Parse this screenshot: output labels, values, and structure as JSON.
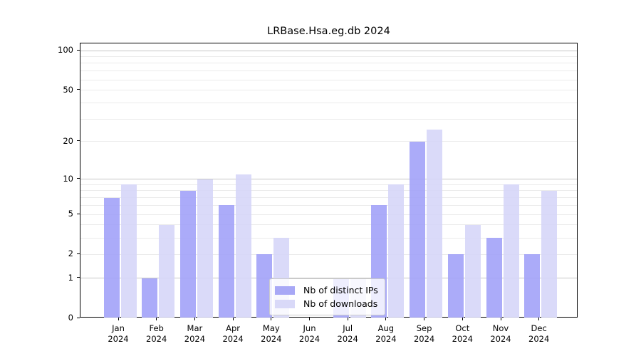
{
  "title": "LRBase.Hsa.eg.db 2024",
  "chart_data": {
    "type": "bar",
    "title": "LRBase.Hsa.eg.db 2024",
    "categories": [
      "Jan",
      "Feb",
      "Mar",
      "Apr",
      "May",
      "Jun",
      "Jul",
      "Aug",
      "Sep",
      "Oct",
      "Nov",
      "Dec"
    ],
    "year_label": "2024",
    "series": [
      {
        "name": "Nb of distinct IPs",
        "color": "#a2a2f8",
        "values": [
          7,
          1,
          8,
          6,
          2,
          0,
          1,
          6,
          20,
          2,
          3,
          2
        ]
      },
      {
        "name": "Nb of downloads",
        "color": "#d6d6f8",
        "values": [
          9,
          4,
          10,
          11,
          3,
          0,
          1,
          9,
          25,
          4,
          9,
          8
        ]
      }
    ],
    "y_scale": "log10(1+x)",
    "y_ticks": [
      100,
      50,
      20,
      10,
      5,
      2,
      1,
      0
    ],
    "major_gridlines": [
      1,
      10,
      100
    ],
    "minor_gridlines": [
      2,
      3,
      4,
      5,
      6,
      7,
      8,
      9,
      20,
      30,
      40,
      50,
      60,
      70,
      80,
      90
    ],
    "ylim": [
      0,
      113
    ],
    "xlabel": "",
    "ylabel": "",
    "grid": true,
    "legend_position": "bottom-center"
  },
  "colors": {
    "background": "#ffffff",
    "spine": "#000000",
    "major_grid": "#c6c6c6",
    "minor_grid": "#ebebeb",
    "text": "#000000"
  }
}
